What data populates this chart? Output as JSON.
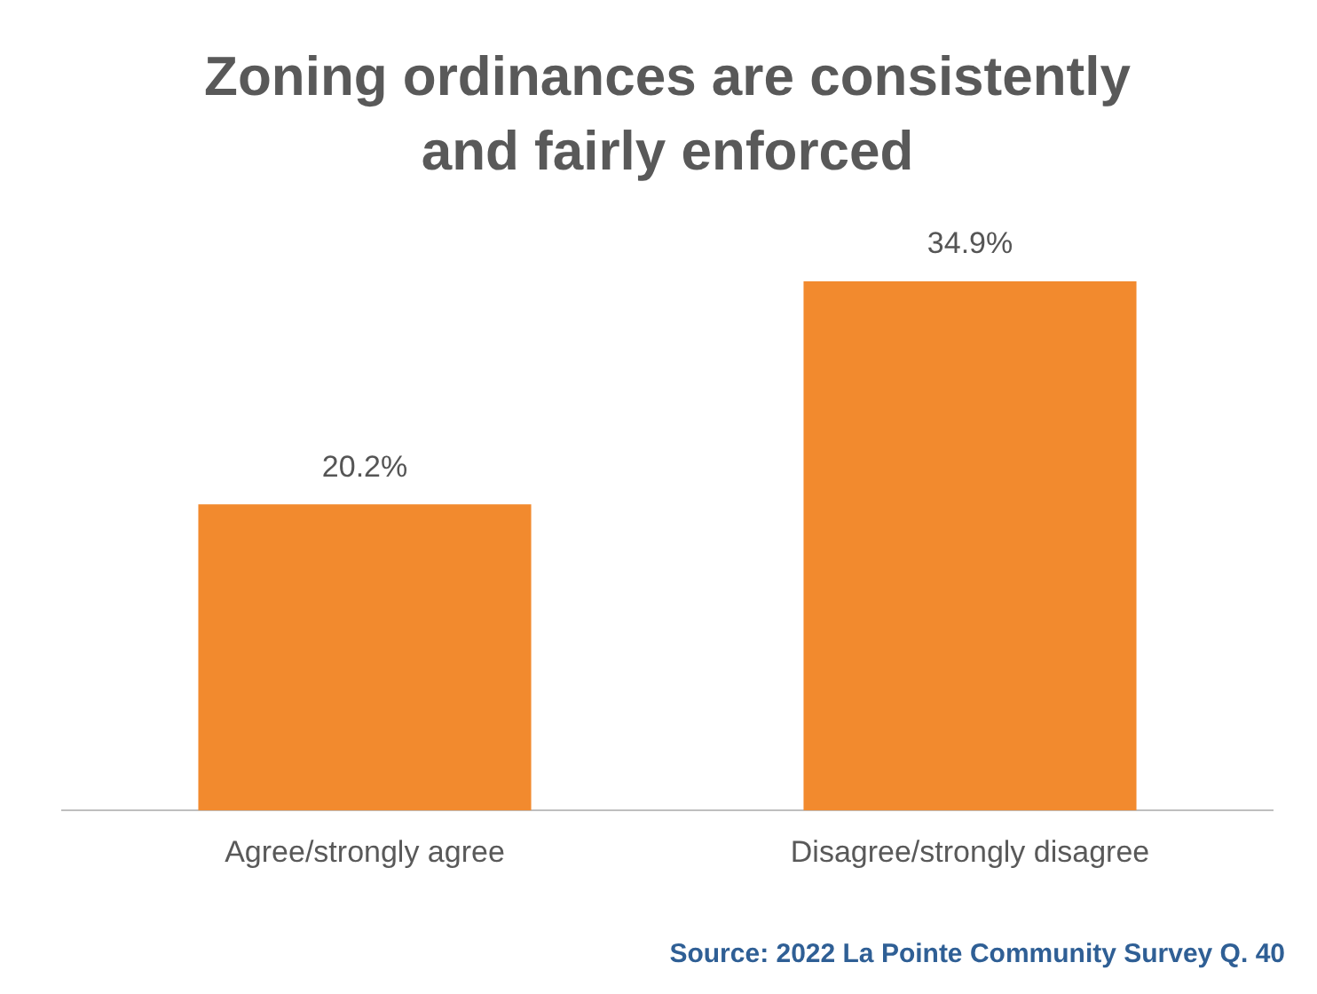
{
  "chart_data": {
    "type": "bar",
    "title": "Zoning ordinances are consistently and fairly enforced",
    "categories": [
      "Agree/strongly agree",
      "Disagree/strongly disagree"
    ],
    "values": [
      20.2,
      34.9
    ],
    "color": "#f28a2e",
    "value_labels": [
      "20.2%",
      "34.9%"
    ],
    "grid": false,
    "legend": false,
    "annotations": [
      "Source: 2022 La Pointe Community Survey Q. 40"
    ]
  }
}
